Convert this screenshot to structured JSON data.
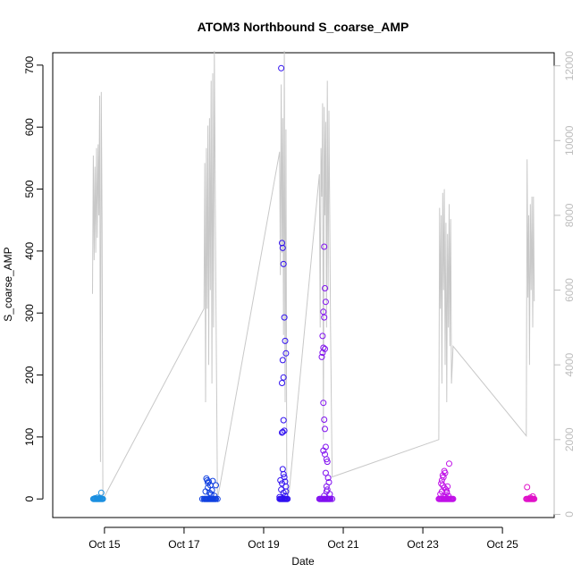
{
  "chart_data": {
    "type": "scatter",
    "title": "ATOM3 Northbound S_coarse_AMP",
    "xlabel": "Date",
    "ylabel": "S_coarse_AMP",
    "x_ticks": [
      "Oct 15",
      "Oct 17",
      "Oct 19",
      "Oct 21",
      "Oct 23",
      "Oct 25"
    ],
    "x_tick_days": [
      15,
      17,
      19,
      21,
      23,
      25
    ],
    "xlim_days": [
      13.7,
      26.3
    ],
    "ylim": [
      -30,
      720
    ],
    "y_ticks": [
      0,
      100,
      200,
      300,
      400,
      500,
      600,
      700
    ],
    "y2lim": [
      -85,
      12350
    ],
    "y2_ticks": [
      0,
      2000,
      4000,
      6000,
      8000,
      10000,
      12000
    ],
    "y2_tick_labels": [
      "0",
      "2000",
      "4000",
      "6000",
      "8000",
      "10000",
      "12000"
    ],
    "grid": false,
    "secondary_series": {
      "axis": "right",
      "style": "line",
      "color": "#c8c8c8",
      "x_days": [
        14.7,
        14.72,
        14.74,
        14.76,
        14.78,
        14.8,
        14.82,
        14.84,
        14.86,
        14.88,
        14.9,
        14.92,
        14.94,
        14.96,
        17.5,
        17.52,
        17.54,
        17.56,
        17.58,
        17.6,
        17.62,
        17.64,
        17.66,
        17.68,
        17.7,
        17.72,
        17.74,
        17.76,
        17.8,
        17.84,
        19.4,
        19.42,
        19.44,
        19.46,
        19.48,
        19.5,
        19.52,
        19.54,
        19.56,
        19.58,
        19.6,
        19.64,
        20.4,
        20.42,
        20.44,
        20.46,
        20.48,
        20.5,
        20.52,
        20.54,
        20.56,
        20.58,
        20.6,
        20.62,
        20.64,
        20.66,
        20.68,
        20.72,
        23.4,
        23.42,
        23.44,
        23.46,
        23.48,
        23.5,
        23.52,
        23.54,
        23.56,
        23.58,
        23.6,
        23.62,
        23.64,
        23.66,
        23.68,
        23.7,
        23.72,
        23.76,
        25.6,
        25.62,
        25.64,
        25.66,
        25.68,
        25.7,
        25.72,
        25.74,
        25.76,
        25.78,
        25.8
      ],
      "y": [
        5900,
        9600,
        6800,
        9300,
        7000,
        9800,
        7400,
        9900,
        8000,
        11200,
        1400,
        11300,
        7800,
        400,
        5500,
        9400,
        3000,
        9800,
        5500,
        10400,
        4000,
        10600,
        6000,
        11600,
        3500,
        11800,
        5000,
        12400,
        6000,
        400,
        9700,
        6400,
        11500,
        7000,
        10600,
        4800,
        12400,
        3000,
        10300,
        1000,
        500,
        600,
        9100,
        5000,
        9800,
        8500,
        11000,
        2000,
        10900,
        8000,
        10500,
        5000,
        11600,
        6000,
        10800,
        8000,
        5000,
        1000,
        2000,
        8200,
        5500,
        8000,
        3500,
        8600,
        6000,
        8700,
        4000,
        7800,
        3000,
        7500,
        5000,
        8300,
        4500,
        7900,
        3500,
        4500,
        2100,
        9500,
        5800,
        8000,
        4000,
        8300,
        6000,
        8500,
        5000,
        8500,
        5700
      ]
    },
    "series": [
      {
        "color": "#1a8fe0",
        "x_days": [
          14.72,
          14.74,
          14.76,
          14.78,
          14.8,
          14.82,
          14.84,
          14.86,
          14.88,
          14.9,
          14.92,
          14.94,
          14.96,
          14.76,
          14.82,
          14.88,
          14.92
        ],
        "y": [
          0,
          0,
          0,
          0,
          0,
          0,
          0,
          0,
          0,
          0,
          0,
          0,
          0,
          1,
          2,
          1,
          10
        ]
      },
      {
        "color": "#1040e0",
        "x_days": [
          17.46,
          17.5,
          17.52,
          17.54,
          17.56,
          17.58,
          17.6,
          17.62,
          17.64,
          17.66,
          17.68,
          17.7,
          17.72,
          17.74,
          17.76,
          17.78,
          17.8,
          17.84,
          17.56,
          17.58,
          17.6,
          17.62,
          17.6,
          17.64,
          17.68,
          17.7,
          17.54,
          17.66,
          17.72,
          17.76,
          17.8
        ],
        "y": [
          0,
          0,
          0,
          0,
          0,
          0,
          0,
          0,
          0,
          0,
          0,
          0,
          0,
          0,
          0,
          0,
          0,
          0,
          33,
          30,
          26,
          28,
          18,
          10,
          8,
          14,
          12,
          22,
          29,
          5,
          22
        ]
      },
      {
        "color": "#3010f0",
        "x_days": [
          19.4,
          19.42,
          19.44,
          19.46,
          19.48,
          19.5,
          19.52,
          19.54,
          19.56,
          19.58,
          19.6,
          19.44,
          19.46,
          19.48,
          19.5,
          19.52,
          19.54,
          19.56,
          19.48,
          19.5,
          19.46,
          19.5,
          19.52,
          19.48,
          19.46,
          19.48,
          19.5,
          19.52,
          19.54,
          19.56,
          19.42,
          19.44,
          19.5,
          19.54,
          19.4,
          19.46,
          19.56
        ],
        "y": [
          0,
          0,
          0,
          0,
          0,
          0,
          0,
          0,
          0,
          0,
          0,
          695,
          413,
          405,
          379,
          293,
          255,
          235,
          224,
          196,
          187,
          127,
          110,
          108,
          107,
          48,
          40,
          35,
          28,
          20,
          30,
          15,
          10,
          5,
          3,
          25,
          12
        ]
      },
      {
        "color": "#8010f0",
        "x_days": [
          20.4,
          20.42,
          20.44,
          20.46,
          20.48,
          20.5,
          20.52,
          20.54,
          20.56,
          20.58,
          20.6,
          20.62,
          20.64,
          20.66,
          20.68,
          20.72,
          20.52,
          20.54,
          20.56,
          20.5,
          20.52,
          20.48,
          20.5,
          20.54,
          20.48,
          20.46,
          20.5,
          20.52,
          20.54,
          20.56,
          20.5,
          20.54,
          20.58,
          20.6,
          20.56,
          20.62,
          20.64,
          20.58,
          20.6,
          20.66,
          20.52,
          20.58
        ],
        "y": [
          0,
          0,
          0,
          0,
          0,
          0,
          0,
          0,
          0,
          0,
          0,
          0,
          0,
          0,
          0,
          0,
          407,
          340,
          318,
          302,
          293,
          263,
          244,
          242,
          236,
          229,
          155,
          128,
          113,
          84,
          78,
          72,
          64,
          60,
          42,
          34,
          27,
          20,
          15,
          8,
          5,
          12
        ]
      },
      {
        "color": "#c010e8",
        "x_days": [
          23.4,
          23.42,
          23.44,
          23.46,
          23.48,
          23.5,
          23.52,
          23.54,
          23.56,
          23.58,
          23.6,
          23.62,
          23.64,
          23.66,
          23.68,
          23.7,
          23.72,
          23.74,
          23.76,
          23.66,
          23.54,
          23.56,
          23.5,
          23.52,
          23.48,
          23.46,
          23.5,
          23.54,
          23.58,
          23.6,
          23.44,
          23.52,
          23.56,
          23.6,
          23.62,
          23.64,
          23.48
        ],
        "y": [
          0,
          0,
          0,
          0,
          0,
          0,
          0,
          0,
          0,
          0,
          0,
          0,
          0,
          0,
          0,
          0,
          0,
          0,
          0,
          57,
          45,
          42,
          38,
          35,
          30,
          25,
          22,
          18,
          15,
          10,
          8,
          5,
          3,
          12,
          20,
          5,
          12
        ]
      },
      {
        "color": "#e010c8",
        "x_days": [
          25.6,
          25.62,
          25.64,
          25.66,
          25.68,
          25.7,
          25.72,
          25.74,
          25.76,
          25.78,
          25.8,
          25.62,
          25.7,
          25.76
        ],
        "y": [
          0,
          0,
          0,
          0,
          0,
          0,
          0,
          0,
          0,
          0,
          0,
          19,
          2,
          4
        ]
      }
    ]
  }
}
